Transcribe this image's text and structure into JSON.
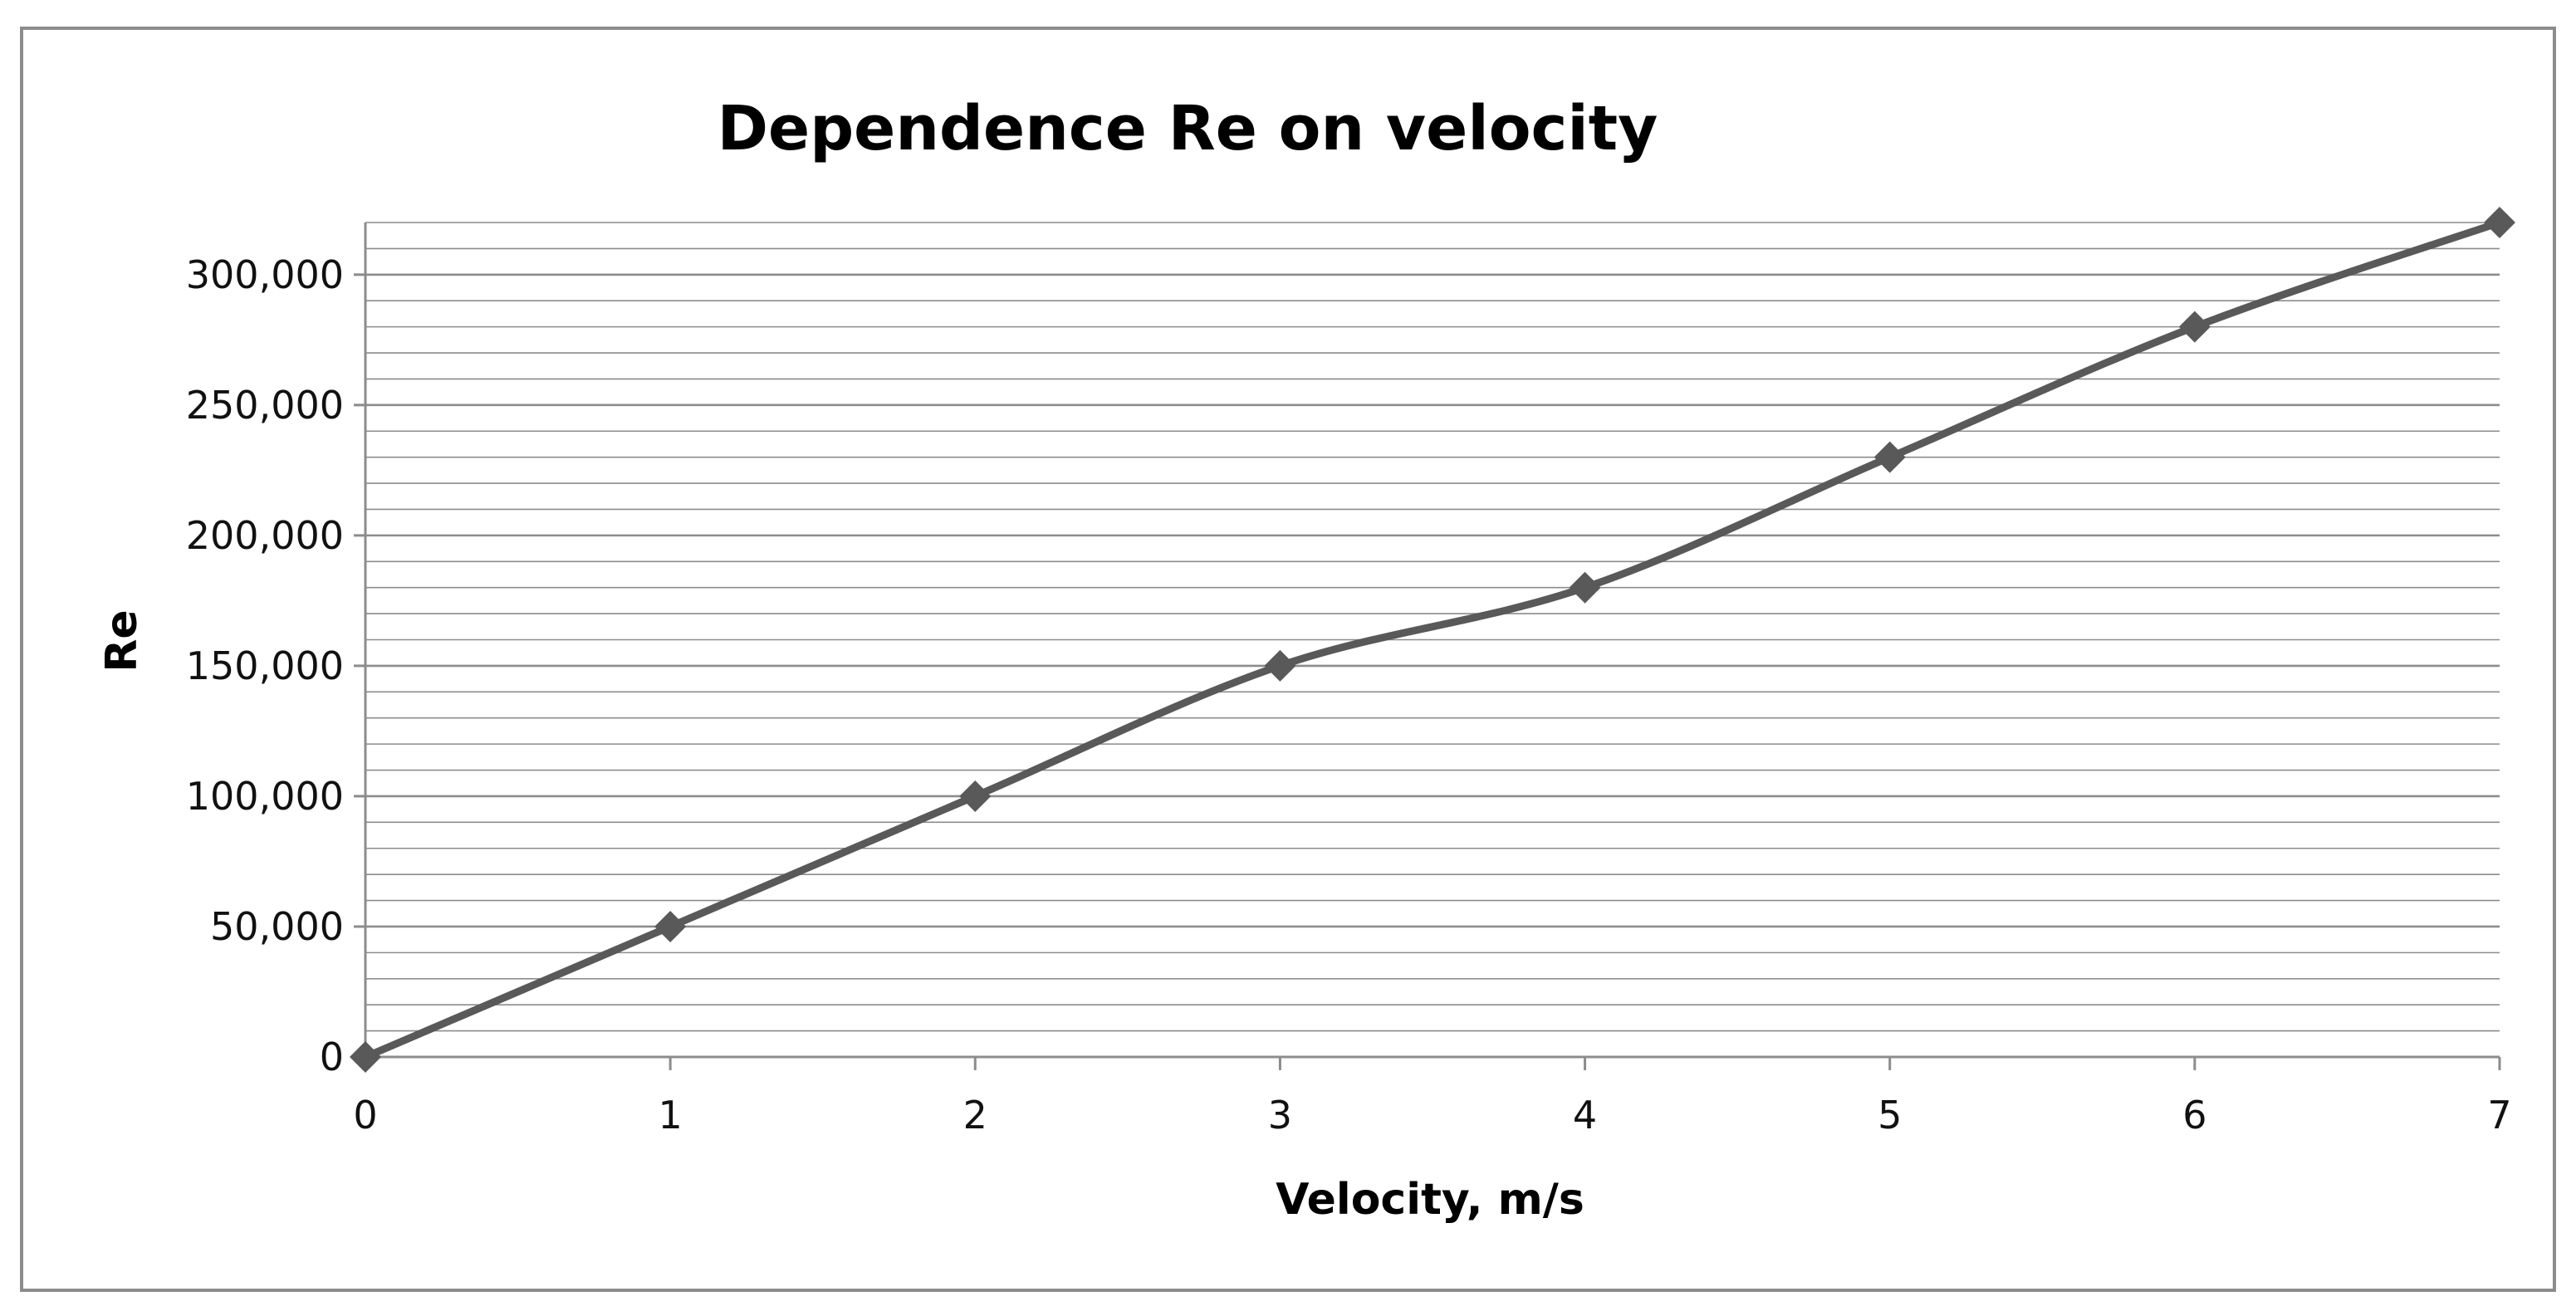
{
  "chart_data": {
    "type": "line",
    "title": "Dependence Re on velocity",
    "xlabel": "Velocity, m/s",
    "ylabel": "Re",
    "x": [
      0,
      1,
      2,
      3,
      4,
      5,
      6,
      7
    ],
    "series": [
      {
        "name": "Re",
        "values": [
          0,
          50000,
          100000,
          150000,
          180000,
          230000,
          280000,
          320000
        ]
      }
    ],
    "xlim": [
      0,
      7
    ],
    "ylim": [
      0,
      320000
    ],
    "x_tick_labels": [
      "0",
      "1",
      "2",
      "3",
      "4",
      "5",
      "6",
      "7"
    ],
    "y_tick_labels": [
      "0",
      "50,000",
      "100,000",
      "150,000",
      "200,000",
      "250,000",
      "300,000"
    ],
    "y_ticks": [
      0,
      50000,
      100000,
      150000,
      200000,
      250000,
      300000
    ],
    "minor_grid_step": 10000,
    "grid": true,
    "marker": "diamond",
    "smooth": true,
    "line_color": "#595959",
    "grid_color": "#8c8c8c",
    "border_color": "#8c8c8c"
  }
}
